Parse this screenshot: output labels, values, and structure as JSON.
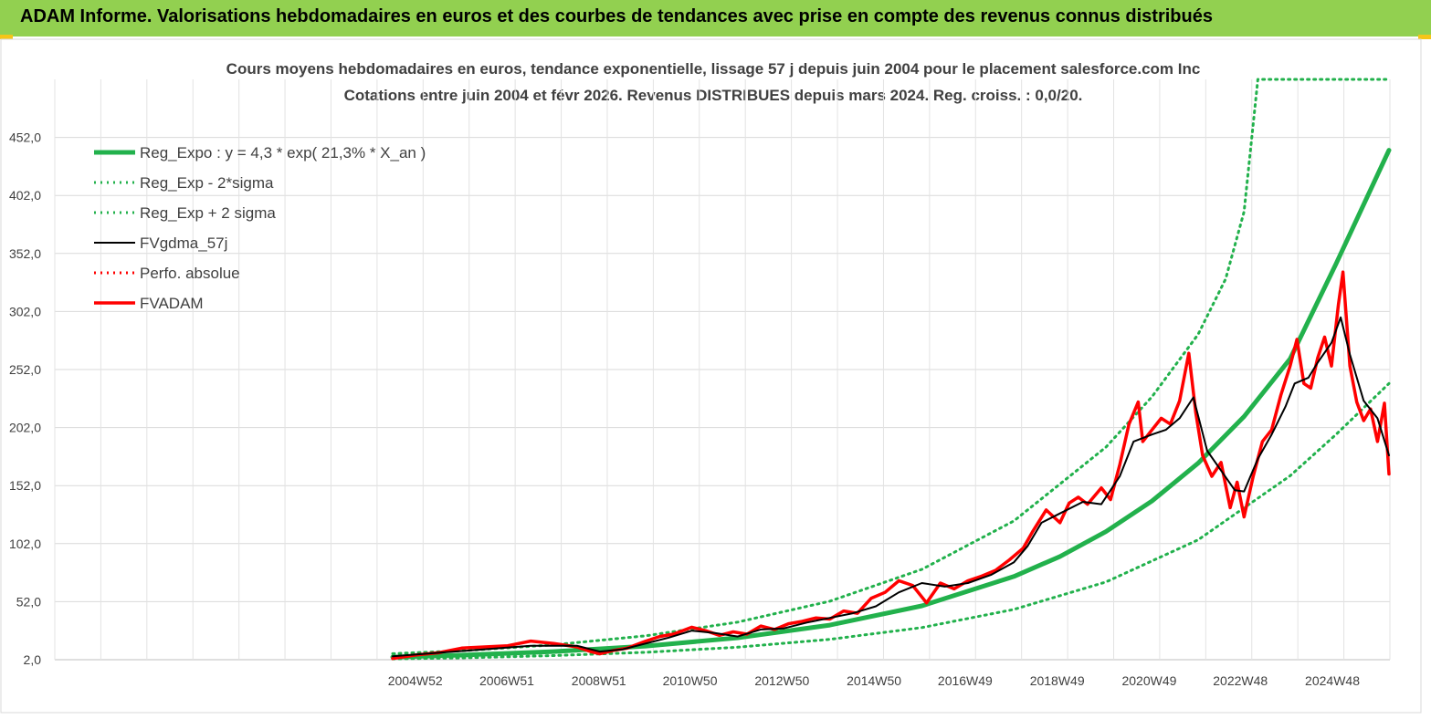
{
  "header": {
    "title": "ADAM Informe. Valorisations hebdomadaires en euros et des courbes de tendances avec prise en compte des revenus connus distribués"
  },
  "chart_data": {
    "type": "line",
    "title_line1": "Cours moyens hebdomadaires en euros, tendance exponentielle, lissage 57 j depuis juin 2004 pour le placement salesforce.com Inc",
    "title_line2": "Cotations entre juin 2004 et févr 2026. Revenus DISTRIBUES depuis mars 2024. Reg. croiss. : 0,0/20.",
    "ylim": [
      2,
      502
    ],
    "y_ticks": [
      "2,0",
      "52,0",
      "102,0",
      "152,0",
      "202,0",
      "252,0",
      "302,0",
      "352,0",
      "402,0",
      "452,0"
    ],
    "xlim": [
      2004.5,
      2026.15
    ],
    "x_ticks": [
      {
        "label": "2004W52",
        "x": 2004.99
      },
      {
        "label": "2006W51",
        "x": 2006.98
      },
      {
        "label": "2008W51",
        "x": 2008.98
      },
      {
        "label": "2010W50",
        "x": 2010.96
      },
      {
        "label": "2012W50",
        "x": 2012.96
      },
      {
        "label": "2014W50",
        "x": 2014.96
      },
      {
        "label": "2016W49",
        "x": 2016.94
      },
      {
        "label": "2018W49",
        "x": 2018.94
      },
      {
        "label": "2020W49",
        "x": 2020.94
      },
      {
        "label": "2022W48",
        "x": 2022.92
      },
      {
        "label": "2024W48",
        "x": 2024.92
      }
    ],
    "legend_position": "top-left",
    "series": [
      {
        "name": "Reg_Expo : y = 4,3 * exp( 21,3% *  X_an )",
        "color": "#22b14c",
        "style": "solid-thick",
        "x": [
          2004.5,
          2006,
          2008,
          2010,
          2012,
          2014,
          2016,
          2018,
          2019,
          2020,
          2021,
          2022,
          2023,
          2024,
          2025,
          2026.15
        ],
        "values": [
          4.3,
          5.9,
          9.0,
          13.7,
          20.9,
          31.8,
          48.4,
          73.7,
          90.9,
          112.4,
          138.7,
          171.3,
          211.5,
          261.2,
          343.0,
          441.0
        ]
      },
      {
        "name": "Reg_Exp - 2*sigma",
        "color": "#22b14c",
        "style": "dotted",
        "x": [
          2004.5,
          2006,
          2008,
          2010,
          2012,
          2014,
          2016,
          2018,
          2020,
          2022,
          2024,
          2025,
          2026.15
        ],
        "values": [
          2.7,
          3.6,
          5.5,
          8.4,
          12.8,
          19.5,
          29.7,
          45.3,
          69.0,
          105.2,
          160.4,
          196.0,
          240.0
        ]
      },
      {
        "name": "Reg_Exp + 2 sigma",
        "color": "#22b14c",
        "style": "dotted",
        "x": [
          2004.5,
          2006,
          2008,
          2010,
          2012,
          2014,
          2016,
          2018,
          2020,
          2021,
          2022,
          2022.6,
          2023.0,
          2023.3,
          2026.15
        ],
        "values": [
          7.2,
          9.7,
          14.8,
          22.6,
          34.4,
          52.4,
          79.8,
          121.6,
          185.2,
          228.6,
          282.2,
          330.0,
          388.0,
          502.0,
          502.0
        ]
      },
      {
        "name": "FVgdma_57j",
        "color": "#000000",
        "style": "solid",
        "x": [
          2004.5,
          2005.5,
          2006.5,
          2007.5,
          2008.5,
          2009.0,
          2009.5,
          2010.5,
          2011.0,
          2011.5,
          2012.0,
          2012.5,
          2013.0,
          2013.5,
          2014.0,
          2014.5,
          2015.0,
          2015.5,
          2016.0,
          2016.5,
          2017.0,
          2017.5,
          2018.0,
          2018.3,
          2018.6,
          2019.0,
          2019.5,
          2019.9,
          2020.3,
          2020.6,
          2021.0,
          2021.3,
          2021.6,
          2021.9,
          2022.2,
          2022.5,
          2022.8,
          2023.0,
          2023.3,
          2023.6,
          2023.9,
          2024.1,
          2024.4,
          2024.6,
          2024.9,
          2025.1,
          2025.3,
          2025.6,
          2025.9,
          2026.15
        ],
        "values": [
          5,
          8,
          11,
          14,
          14,
          9,
          11,
          21,
          27,
          25,
          22,
          28,
          29,
          34,
          38,
          42,
          48,
          60,
          68,
          65,
          68,
          75,
          86,
          100,
          120,
          128,
          138,
          136,
          160,
          190,
          196,
          200,
          210,
          228,
          182,
          165,
          148,
          147,
          175,
          196,
          220,
          240,
          245,
          258,
          275,
          297,
          265,
          225,
          210,
          178
        ]
      },
      {
        "name": "Perfo. absolue",
        "color": "#ff0000",
        "style": "dotted",
        "x": [],
        "values": []
      },
      {
        "name": "FVADAM",
        "color": "#ff0000",
        "style": "solid-thick",
        "x": [
          2004.5,
          2005.0,
          2005.5,
          2006.0,
          2006.5,
          2007.0,
          2007.5,
          2008.0,
          2008.5,
          2008.8,
          2009.0,
          2009.3,
          2009.6,
          2010.0,
          2010.3,
          2010.6,
          2011.0,
          2011.3,
          2011.6,
          2011.9,
          2012.2,
          2012.5,
          2012.8,
          2013.1,
          2013.4,
          2013.7,
          2014.0,
          2014.3,
          2014.6,
          2014.9,
          2015.2,
          2015.5,
          2015.8,
          2016.1,
          2016.4,
          2016.7,
          2017.0,
          2017.3,
          2017.6,
          2017.9,
          2018.2,
          2018.4,
          2018.7,
          2019.0,
          2019.2,
          2019.4,
          2019.6,
          2019.9,
          2020.1,
          2020.3,
          2020.5,
          2020.7,
          2020.8,
          2021.0,
          2021.2,
          2021.4,
          2021.6,
          2021.8,
          2021.95,
          2022.1,
          2022.3,
          2022.5,
          2022.7,
          2022.85,
          2023.0,
          2023.2,
          2023.4,
          2023.6,
          2023.8,
          2024.0,
          2024.15,
          2024.3,
          2024.45,
          2024.6,
          2024.75,
          2024.9,
          2025.05,
          2025.15,
          2025.3,
          2025.45,
          2025.6,
          2025.75,
          2025.9,
          2026.05,
          2026.15
        ],
        "values": [
          3,
          6,
          8,
          12,
          13,
          14,
          18,
          16,
          13,
          9,
          7,
          10,
          12,
          18,
          22,
          24,
          30,
          27,
          23,
          26,
          24,
          31,
          28,
          33,
          35,
          38,
          37,
          44,
          42,
          55,
          60,
          70,
          66,
          51,
          68,
          63,
          70,
          74,
          79,
          88,
          98,
          112,
          131,
          120,
          137,
          142,
          136,
          150,
          140,
          170,
          205,
          224,
          190,
          200,
          210,
          205,
          225,
          266,
          215,
          178,
          160,
          172,
          133,
          155,
          125,
          160,
          190,
          200,
          230,
          255,
          278,
          240,
          236,
          262,
          280,
          255,
          308,
          336,
          255,
          224,
          208,
          218,
          190,
          223,
          162
        ]
      }
    ]
  }
}
